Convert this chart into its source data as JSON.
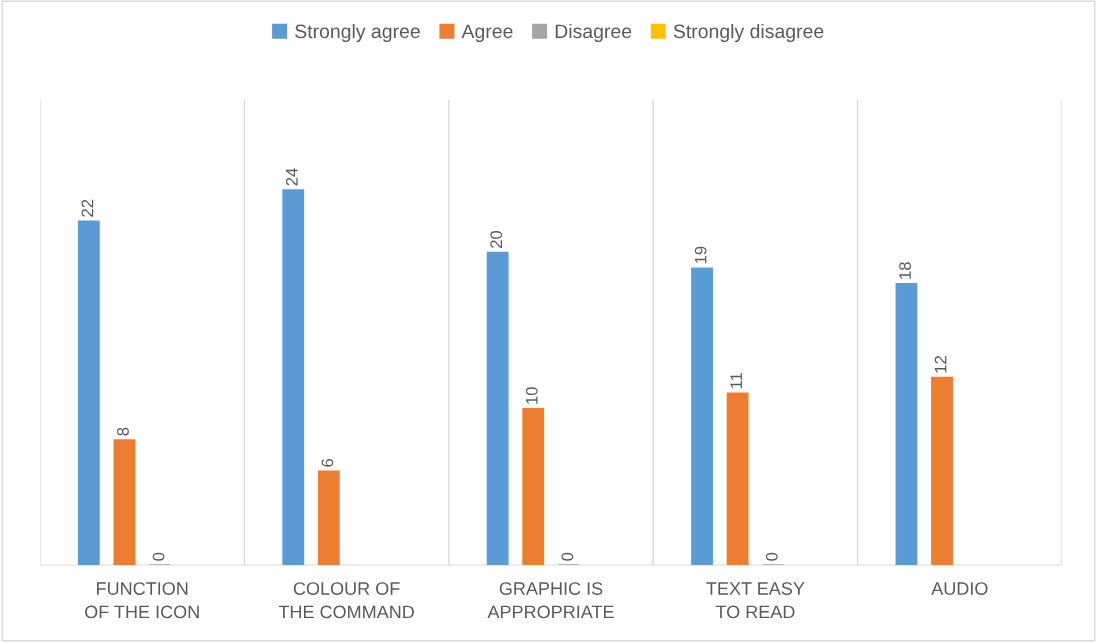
{
  "chart_data": {
    "type": "bar",
    "categories": [
      "FUNCTION OF THE ICON",
      "COLOUR OF THE COMMAND",
      "GRAPHIC IS APPROPRIATE",
      "TEXT EASY TO READ",
      "AUDIO"
    ],
    "series": [
      {
        "name": "Strongly agree",
        "color": "#5b9bd5",
        "values": [
          22,
          24,
          20,
          19,
          18
        ]
      },
      {
        "name": "Agree",
        "color": "#ed7d31",
        "values": [
          8,
          6,
          10,
          11,
          12
        ]
      },
      {
        "name": "Disagree",
        "color": "#a5a5a5",
        "values": [
          0,
          null,
          0,
          0,
          null
        ]
      },
      {
        "name": "Strongly disagree",
        "color": "#ffc000",
        "values": [
          null,
          null,
          null,
          null,
          null
        ]
      }
    ],
    "data_labels": true,
    "grid": "x",
    "legend": "top"
  }
}
